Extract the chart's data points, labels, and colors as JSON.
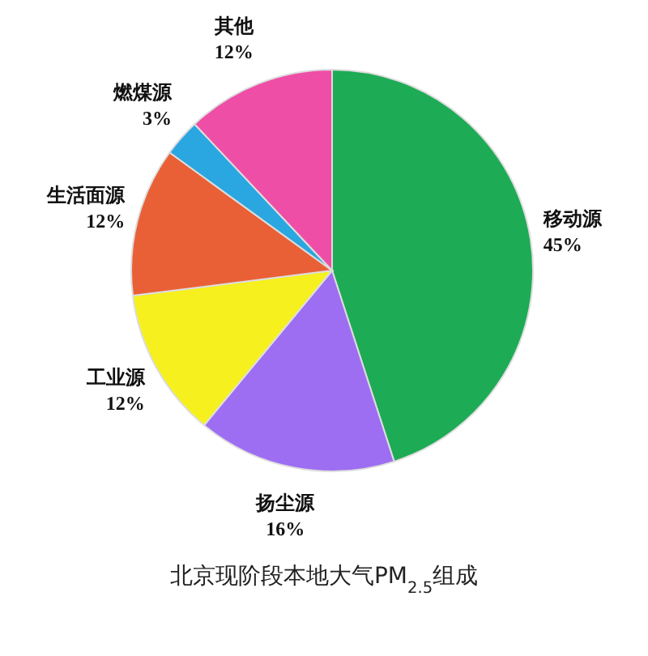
{
  "chart_data": {
    "type": "pie",
    "title": "北京现阶段本地大气PM$_{2.5}$组成",
    "categories": [
      "移动源",
      "扬尘源",
      "工业源",
      "生活面源",
      "燃煤源",
      "其他"
    ],
    "values": [
      45,
      16,
      12,
      12,
      3,
      12
    ],
    "value_labels": [
      "45%",
      "16%",
      "12%",
      "12%",
      "3%",
      "12%"
    ],
    "colors": [
      "#1eab55",
      "#9d6df2",
      "#f6f01e",
      "#ea6036",
      "#2aa6e0",
      "#ee4ea6"
    ]
  }
}
